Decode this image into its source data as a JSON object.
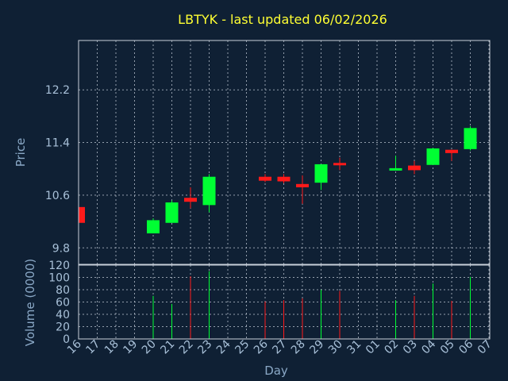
{
  "chart_data": {
    "type": "candlestick",
    "title": "LBTYK - last updated 06/02/2026",
    "xlabel": "Day",
    "colors": {
      "up": "#00ff33",
      "down": "#ff1a1a",
      "background": "#0f2034",
      "title": "#ffff33"
    },
    "days": [
      "16",
      "17",
      "18",
      "19",
      "20",
      "21",
      "22",
      "23",
      "24",
      "25",
      "26",
      "27",
      "28",
      "29",
      "30",
      "31",
      "01",
      "02",
      "03",
      "04",
      "05",
      "06",
      "07"
    ],
    "price": {
      "ylabel": "Price",
      "ylim": [
        9.55,
        12.95
      ],
      "ticks": [
        "9.8",
        "10.6",
        "11.4",
        "12.2"
      ],
      "tick_values": [
        9.8,
        10.6,
        11.4,
        12.2
      ],
      "candles": [
        {
          "day": "16",
          "open": 10.42,
          "high": 10.42,
          "low": 10.18,
          "close": 10.18
        },
        {
          "day": "20",
          "open": 10.02,
          "high": 10.25,
          "low": 10.02,
          "close": 10.22
        },
        {
          "day": "21",
          "open": 10.18,
          "high": 10.52,
          "low": 10.18,
          "close": 10.49
        },
        {
          "day": "22",
          "open": 10.56,
          "high": 10.72,
          "low": 10.4,
          "close": 10.5
        },
        {
          "day": "23",
          "open": 10.45,
          "high": 10.92,
          "low": 10.34,
          "close": 10.88
        },
        {
          "day": "26",
          "open": 10.88,
          "high": 10.92,
          "low": 10.8,
          "close": 10.82
        },
        {
          "day": "27",
          "open": 10.88,
          "high": 10.92,
          "low": 10.78,
          "close": 10.81
        },
        {
          "day": "28",
          "open": 10.77,
          "high": 10.9,
          "low": 10.47,
          "close": 10.72
        },
        {
          "day": "29",
          "open": 10.79,
          "high": 11.07,
          "low": 10.68,
          "close": 11.07
        },
        {
          "day": "30",
          "open": 11.09,
          "high": 11.17,
          "low": 10.98,
          "close": 11.06
        },
        {
          "day": "02",
          "open": 11.0,
          "high": 11.2,
          "low": 10.98,
          "close": 11.01
        },
        {
          "day": "03",
          "open": 11.05,
          "high": 11.12,
          "low": 10.92,
          "close": 10.98
        },
        {
          "day": "04",
          "open": 11.06,
          "high": 11.32,
          "low": 11.06,
          "close": 11.31
        },
        {
          "day": "05",
          "open": 11.29,
          "high": 11.29,
          "low": 11.12,
          "close": 11.24
        },
        {
          "day": "06",
          "open": 11.3,
          "high": 11.65,
          "low": 11.28,
          "close": 11.62
        }
      ]
    },
    "volume": {
      "ylabel": "Volume (0000)",
      "ylim": [
        0,
        120
      ],
      "ticks": [
        "0",
        "20",
        "40",
        "60",
        "80",
        "100",
        "120"
      ],
      "tick_values": [
        0,
        20,
        40,
        60,
        80,
        100,
        120
      ],
      "bars": [
        {
          "day": "20",
          "value": 70,
          "dir": "up"
        },
        {
          "day": "21",
          "value": 57,
          "dir": "up"
        },
        {
          "day": "22",
          "value": 102,
          "dir": "down"
        },
        {
          "day": "23",
          "value": 110,
          "dir": "up"
        },
        {
          "day": "26",
          "value": 61,
          "dir": "down"
        },
        {
          "day": "27",
          "value": 63,
          "dir": "down"
        },
        {
          "day": "28",
          "value": 66,
          "dir": "down"
        },
        {
          "day": "29",
          "value": 80,
          "dir": "up"
        },
        {
          "day": "30",
          "value": 78,
          "dir": "down"
        },
        {
          "day": "02",
          "value": 63,
          "dir": "up"
        },
        {
          "day": "03",
          "value": 70,
          "dir": "down"
        },
        {
          "day": "04",
          "value": 90,
          "dir": "up"
        },
        {
          "day": "05",
          "value": 62,
          "dir": "down"
        },
        {
          "day": "06",
          "value": 101,
          "dir": "up"
        }
      ]
    }
  }
}
